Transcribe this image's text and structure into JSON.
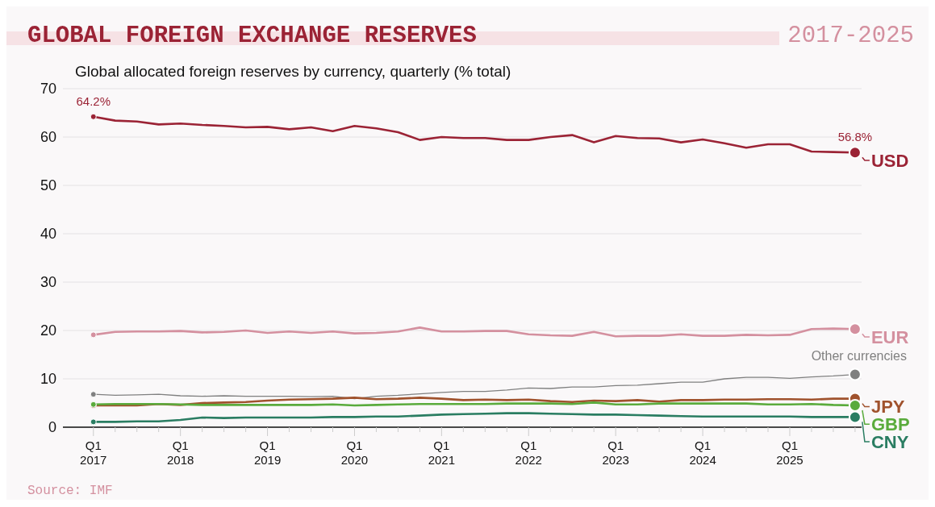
{
  "chart_data": {
    "type": "line",
    "title": "GLOBAL FOREIGN EXCHANGE RESERVES",
    "subtitle": "Global allocated foreign reserves by currency, quarterly (% total)",
    "annotations": [
      "2017-2025",
      "Source: IMF"
    ],
    "categories": [
      "Q1 2017",
      null,
      null,
      null,
      "Q1 2018",
      null,
      null,
      null,
      "Q1 2019",
      null,
      null,
      null,
      "Q1 2020",
      null,
      null,
      null,
      "Q1 2021",
      null,
      null,
      null,
      "Q1 2022",
      null,
      null,
      null,
      "Q1 2023",
      null,
      null,
      null,
      "Q1 2024",
      null,
      null,
      null,
      "Q1 2025",
      null,
      null,
      null
    ],
    "series": [
      {
        "name": "USD",
        "color": "#9b2335",
        "values": [
          64.2,
          63.4,
          63.2,
          62.6,
          62.8,
          62.5,
          62.3,
          62.0,
          62.1,
          61.6,
          62.0,
          61.2,
          62.3,
          61.8,
          61.0,
          59.4,
          60.0,
          59.8,
          59.8,
          59.4,
          59.4,
          60.0,
          60.4,
          58.9,
          60.2,
          59.8,
          59.7,
          58.9,
          59.5,
          58.7,
          57.8,
          58.5,
          58.5,
          57.0,
          56.9,
          56.8
        ],
        "value_labels": [
          "64.2%",
          null,
          null,
          null,
          null,
          null,
          null,
          null,
          null,
          null,
          null,
          null,
          null,
          null,
          null,
          null,
          null,
          null,
          null,
          null,
          null,
          null,
          null,
          null,
          null,
          null,
          null,
          null,
          null,
          null,
          null,
          null,
          null,
          null,
          null,
          "56.8%"
        ]
      },
      {
        "name": "EUR",
        "color": "#d4909f",
        "values": [
          19.1,
          19.7,
          19.8,
          19.8,
          19.9,
          19.6,
          19.7,
          20.0,
          19.5,
          19.8,
          19.5,
          19.8,
          19.4,
          19.5,
          19.8,
          20.6,
          19.8,
          19.8,
          19.9,
          19.9,
          19.2,
          19.0,
          18.9,
          19.7,
          18.8,
          18.9,
          18.9,
          19.2,
          18.9,
          18.9,
          19.1,
          19.0,
          19.1,
          20.3,
          20.4,
          20.3
        ]
      },
      {
        "name": "Other currencies",
        "color": "#808080",
        "values": [
          6.8,
          6.6,
          6.7,
          6.8,
          6.5,
          6.4,
          6.5,
          6.4,
          6.4,
          6.4,
          6.3,
          6.4,
          5.9,
          6.4,
          6.6,
          6.9,
          7.2,
          7.4,
          7.4,
          7.7,
          8.1,
          8.0,
          8.3,
          8.3,
          8.6,
          8.7,
          9.0,
          9.3,
          9.3,
          10.0,
          10.3,
          10.3,
          10.1,
          10.4,
          10.6,
          10.9
        ]
      },
      {
        "name": "JPY",
        "color": "#a0522d",
        "values": [
          4.5,
          4.5,
          4.5,
          4.8,
          4.6,
          5.0,
          5.1,
          5.2,
          5.5,
          5.7,
          5.8,
          5.9,
          6.1,
          5.8,
          5.9,
          6.1,
          5.9,
          5.6,
          5.7,
          5.6,
          5.7,
          5.4,
          5.2,
          5.5,
          5.4,
          5.6,
          5.3,
          5.6,
          5.6,
          5.7,
          5.7,
          5.8,
          5.8,
          5.7,
          5.9,
          5.9
        ]
      },
      {
        "name": "GBP",
        "color": "#5aab3c",
        "values": [
          4.7,
          4.8,
          4.8,
          4.8,
          4.7,
          4.6,
          4.6,
          4.6,
          4.6,
          4.6,
          4.6,
          4.7,
          4.5,
          4.6,
          4.7,
          4.8,
          4.8,
          4.8,
          4.8,
          4.9,
          4.9,
          4.9,
          4.8,
          5.1,
          4.7,
          4.7,
          4.9,
          4.9,
          4.9,
          4.9,
          4.9,
          4.7,
          4.7,
          4.8,
          4.6,
          4.5
        ]
      },
      {
        "name": "CNY",
        "color": "#2a7d62",
        "values": [
          1.1,
          1.1,
          1.2,
          1.2,
          1.5,
          2.0,
          1.9,
          2.0,
          2.0,
          2.0,
          2.0,
          2.1,
          2.1,
          2.2,
          2.2,
          2.4,
          2.6,
          2.7,
          2.8,
          2.9,
          2.9,
          2.8,
          2.7,
          2.6,
          2.6,
          2.5,
          2.4,
          2.3,
          2.2,
          2.2,
          2.2,
          2.2,
          2.2,
          2.1,
          2.1,
          2.1
        ]
      }
    ],
    "ylim": [
      0,
      70
    ],
    "yticks": [
      0,
      10,
      20,
      30,
      40,
      50,
      60,
      70
    ],
    "grid": "y",
    "legend": "right",
    "line_style": "solid"
  }
}
